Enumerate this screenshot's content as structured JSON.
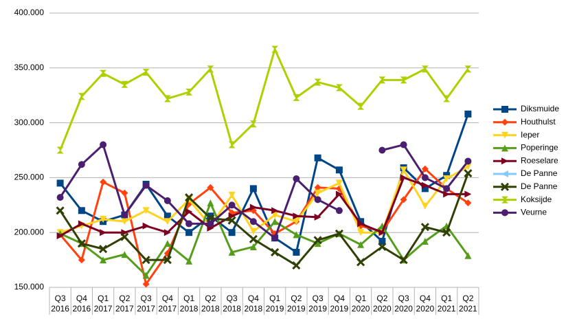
{
  "chart_data": {
    "type": "line",
    "categories": [
      [
        "Q3",
        "2016"
      ],
      [
        "Q4",
        "2016"
      ],
      [
        "Q1",
        "2017"
      ],
      [
        "Q2",
        "2017"
      ],
      [
        "Q3",
        "2017"
      ],
      [
        "Q4",
        "2017"
      ],
      [
        "Q1",
        "2018"
      ],
      [
        "Q2",
        "2018"
      ],
      [
        "Q3",
        "2018"
      ],
      [
        "Q4",
        "2018"
      ],
      [
        "Q1",
        "2019"
      ],
      [
        "Q2",
        "2019"
      ],
      [
        "Q3",
        "2019"
      ],
      [
        "Q4",
        "2019"
      ],
      [
        "Q1",
        "2020"
      ],
      [
        "Q2",
        "2020"
      ],
      [
        "Q3",
        "2020"
      ],
      [
        "Q4",
        "2020"
      ],
      [
        "Q1",
        "2021"
      ],
      [
        "Q2",
        "2021"
      ]
    ],
    "ylim": [
      150000,
      400000
    ],
    "yticks": [
      {
        "value": 150000,
        "label": "150.000"
      },
      {
        "value": 200000,
        "label": "200.000"
      },
      {
        "value": 250000,
        "label": "250.000"
      },
      {
        "value": 300000,
        "label": "300.000"
      },
      {
        "value": 350000,
        "label": "350.000"
      },
      {
        "value": 400000,
        "label": "400.000"
      }
    ],
    "grid": true,
    "legend": "right",
    "series": [
      {
        "name": "Diksmuide",
        "color": "#004586",
        "marker": "square",
        "values": [
          245000,
          220000,
          210000,
          216000,
          244000,
          215000,
          200000,
          215000,
          200000,
          240000,
          195000,
          182000,
          268000,
          257000,
          210000,
          192000,
          259000,
          240000,
          252000,
          308000
        ]
      },
      {
        "name": "Houthulst",
        "color": "#ff420e",
        "marker": "diamond",
        "values": [
          198000,
          175000,
          246000,
          236000,
          153000,
          181000,
          226000,
          241000,
          218000,
          220000,
          199000,
          210000,
          241000,
          240000,
          206000,
          201000,
          230000,
          258000,
          240000,
          227000
        ]
      },
      {
        "name": "Ieper",
        "color": "#ffd320",
        "marker": "triangle-down",
        "values": [
          200000,
          206000,
          212000,
          210000,
          220000,
          210000,
          230000,
          206000,
          234000,
          201000,
          216000,
          210000,
          236000,
          245000,
          200000,
          200000,
          257000,
          224000,
          249000,
          260000
        ]
      },
      {
        "name": "Poperinge",
        "color": "#579d1c",
        "marker": "triangle-up",
        "values": [
          199000,
          190000,
          175000,
          180000,
          161000,
          190000,
          174000,
          227000,
          182000,
          187000,
          210000,
          198000,
          190000,
          199000,
          189000,
          206000,
          175000,
          192000,
          206000,
          179000
        ]
      },
      {
        "name": "Roeselare",
        "color": "#7e0021",
        "marker": "triangle-right",
        "values": [
          197000,
          208000,
          200000,
          200000,
          206000,
          200000,
          219000,
          204000,
          215000,
          223000,
          220000,
          215000,
          214000,
          235000,
          208000,
          200000,
          250000,
          243000,
          235000,
          235000
        ]
      },
      {
        "name": "De Panne",
        "color": "#83caff",
        "marker": "triangle-left",
        "values": [
          null,
          null,
          null,
          null,
          null,
          null,
          null,
          null,
          null,
          null,
          null,
          null,
          null,
          null,
          null,
          null,
          null,
          null,
          null,
          null
        ]
      },
      {
        "name": "De Panne",
        "color": "#314004",
        "marker": "x",
        "values": [
          220000,
          190000,
          185000,
          196000,
          175000,
          175000,
          232000,
          213000,
          211000,
          194000,
          182000,
          170000,
          193000,
          199000,
          173000,
          187000,
          175000,
          205000,
          200000,
          254000
        ]
      },
      {
        "name": "Koksijde",
        "color": "#aecf00",
        "marker": "hourglass",
        "values": [
          275000,
          324000,
          345000,
          335000,
          346000,
          322000,
          328000,
          349000,
          280000,
          299000,
          367000,
          323000,
          337000,
          332000,
          315000,
          339000,
          339000,
          349000,
          322000,
          349000
        ]
      },
      {
        "name": "Veurne",
        "color": "#4b1f6f",
        "marker": "circle",
        "values": [
          232000,
          262000,
          280000,
          216000,
          243000,
          229000,
          208000,
          208000,
          225000,
          210000,
          195000,
          249000,
          230000,
          220000,
          null,
          275000,
          280000,
          250000,
          240000,
          265000
        ]
      }
    ]
  }
}
